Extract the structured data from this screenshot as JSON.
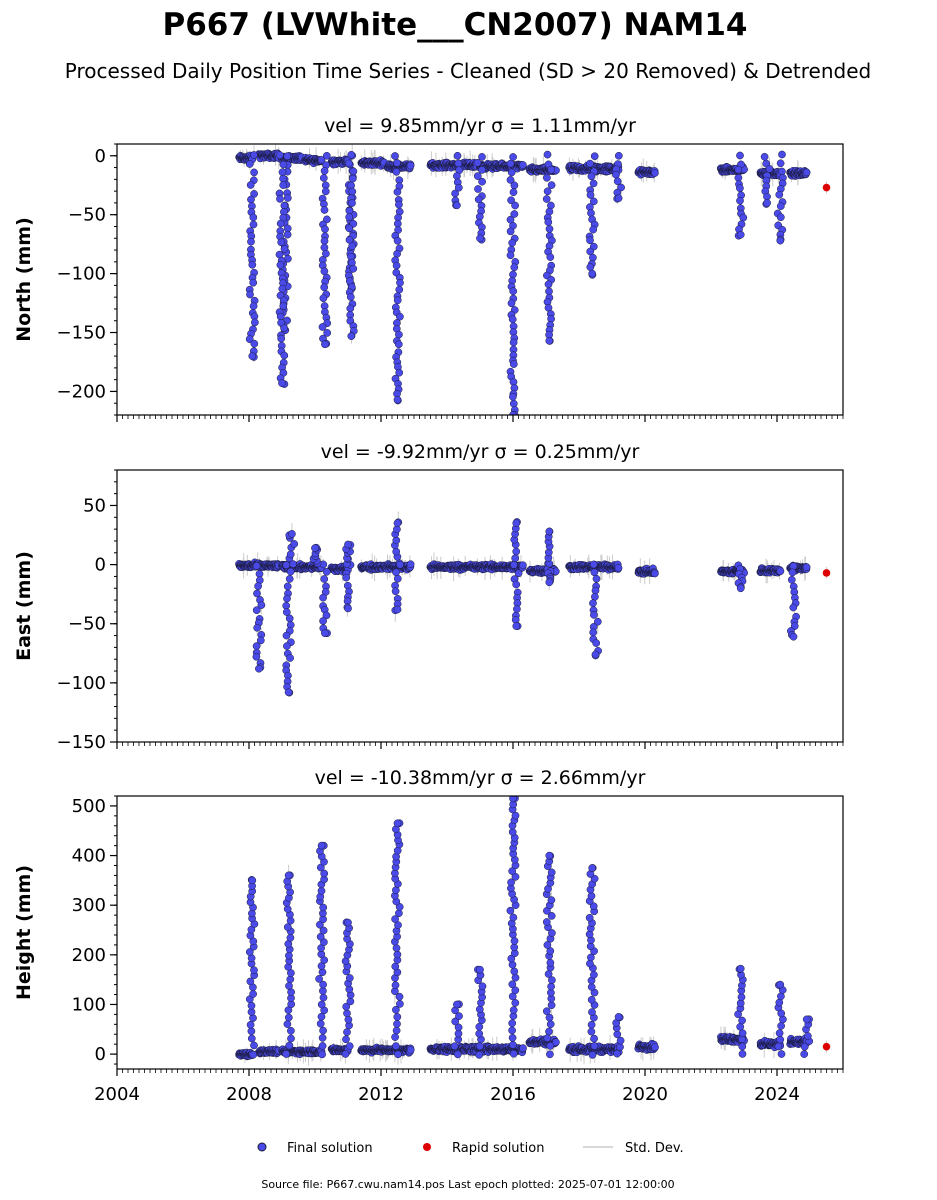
{
  "title": "P667 (LVWhite___CN2007) NAM14",
  "subtitle": "Processed Daily Position Time Series - Cleaned (SD > 20 Removed) & Detrended",
  "footer": "Source file: P667.cwu.nam14.pos  Last epoch plotted: 2025-07-01 12:00:00",
  "colors": {
    "final": "#4a4ae8",
    "rapid": "#dd0000",
    "stddev": "#cccccc",
    "edge": "#1a1a3a"
  },
  "legend": [
    {
      "label": "Final solution",
      "marker": "circle",
      "color": "#4a4ae8"
    },
    {
      "label": "Rapid solution",
      "marker": "circle",
      "color": "#dd0000"
    },
    {
      "label": "Std. Dev.",
      "marker": "line",
      "color": "#cccccc"
    }
  ],
  "chart_data": [
    {
      "type": "scatter",
      "title": "vel = 9.85mm/yr   σ = 1.11mm/yr",
      "ylabel": "North (mm)",
      "xlim": [
        2004.0,
        2026.0
      ],
      "ylim": [
        -220,
        10
      ],
      "yticks": [
        0,
        -50,
        -100,
        -150,
        -200
      ],
      "xticks": [
        2004,
        2008,
        2012,
        2016,
        2020,
        2024
      ],
      "clusters": [
        {
          "x": [
            2007.7,
            2008.1
          ],
          "base": -2,
          "spread": 3
        },
        {
          "x": [
            2008.3,
            2008.9
          ],
          "base": 0,
          "spread": 3
        },
        {
          "x": [
            2009.0,
            2009.6
          ],
          "base": -2,
          "spread": 3
        },
        {
          "x": [
            2009.7,
            2010.2
          ],
          "base": -4,
          "spread": 3
        },
        {
          "x": [
            2010.5,
            2011.0
          ],
          "base": -5,
          "spread": 3
        },
        {
          "x": [
            2011.4,
            2012.1
          ],
          "base": -6,
          "spread": 3
        },
        {
          "x": [
            2012.2,
            2012.9
          ],
          "base": -9,
          "spread": 3
        },
        {
          "x": [
            2013.5,
            2014.9
          ],
          "base": -8,
          "spread": 3
        },
        {
          "x": [
            2015.0,
            2016.3
          ],
          "base": -9,
          "spread": 3
        },
        {
          "x": [
            2016.5,
            2017.3
          ],
          "base": -12,
          "spread": 3
        },
        {
          "x": [
            2017.7,
            2019.2
          ],
          "base": -11,
          "spread": 4
        },
        {
          "x": [
            2019.8,
            2020.3
          ],
          "base": -14,
          "spread": 3
        },
        {
          "x": [
            2022.3,
            2023.0
          ],
          "base": -12,
          "spread": 3
        },
        {
          "x": [
            2023.5,
            2024.1
          ],
          "base": -15,
          "spread": 3
        },
        {
          "x": [
            2024.4,
            2024.9
          ],
          "base": -15,
          "spread": 3
        }
      ],
      "spikes": [
        {
          "x": 2008.1,
          "y": -170
        },
        {
          "x": 2009.1,
          "y": -148
        },
        {
          "x": 2009.0,
          "y": -193
        },
        {
          "x": 2010.3,
          "y": -160
        },
        {
          "x": 2011.1,
          "y": -113
        },
        {
          "x": 2011.1,
          "y": -153
        },
        {
          "x": 2012.5,
          "y": -207
        },
        {
          "x": 2014.3,
          "y": -42
        },
        {
          "x": 2015.0,
          "y": -70
        },
        {
          "x": 2016.0,
          "y": -220
        },
        {
          "x": 2017.1,
          "y": -157
        },
        {
          "x": 2018.4,
          "y": -100
        },
        {
          "x": 2019.2,
          "y": -36
        },
        {
          "x": 2022.9,
          "y": -67
        },
        {
          "x": 2023.7,
          "y": -40
        },
        {
          "x": 2024.1,
          "y": -72
        }
      ],
      "rapid": [
        {
          "x": 2025.5,
          "y": -27
        }
      ]
    },
    {
      "type": "scatter",
      "title": "vel = -9.92mm/yr   σ = 0.25mm/yr",
      "ylabel": "East (mm)",
      "xlim": [
        2004.0,
        2026.0
      ],
      "ylim": [
        -150,
        80
      ],
      "yticks": [
        50,
        0,
        -50,
        -100,
        -150
      ],
      "xticks": [
        2004,
        2008,
        2012,
        2016,
        2020,
        2024
      ],
      "clusters": [
        {
          "x": [
            2007.7,
            2008.9
          ],
          "base": -1,
          "spread": 3
        },
        {
          "x": [
            2009.0,
            2010.2
          ],
          "base": -2,
          "spread": 3
        },
        {
          "x": [
            2010.5,
            2011.0
          ],
          "base": -4,
          "spread": 3
        },
        {
          "x": [
            2011.4,
            2012.9
          ],
          "base": -2,
          "spread": 3
        },
        {
          "x": [
            2013.5,
            2016.3
          ],
          "base": -2,
          "spread": 3
        },
        {
          "x": [
            2016.5,
            2017.3
          ],
          "base": -5,
          "spread": 3
        },
        {
          "x": [
            2017.7,
            2019.2
          ],
          "base": -2,
          "spread": 3
        },
        {
          "x": [
            2019.8,
            2020.3
          ],
          "base": -6,
          "spread": 3
        },
        {
          "x": [
            2022.3,
            2023.0
          ],
          "base": -6,
          "spread": 3
        },
        {
          "x": [
            2023.5,
            2024.1
          ],
          "base": -5,
          "spread": 3
        },
        {
          "x": [
            2024.4,
            2024.9
          ],
          "base": -3,
          "spread": 3
        }
      ],
      "spikes": [
        {
          "x": 2008.3,
          "y": -88
        },
        {
          "x": 2009.2,
          "y": -108
        },
        {
          "x": 2009.3,
          "y": 26
        },
        {
          "x": 2010.3,
          "y": -58
        },
        {
          "x": 2010.0,
          "y": 14
        },
        {
          "x": 2011.0,
          "y": -37
        },
        {
          "x": 2011.0,
          "y": 17
        },
        {
          "x": 2012.5,
          "y": -38
        },
        {
          "x": 2012.5,
          "y": 35
        },
        {
          "x": 2016.1,
          "y": -52
        },
        {
          "x": 2016.1,
          "y": 35
        },
        {
          "x": 2017.1,
          "y": -15
        },
        {
          "x": 2017.1,
          "y": 28
        },
        {
          "x": 2018.5,
          "y": -76
        },
        {
          "x": 2022.9,
          "y": -20
        },
        {
          "x": 2024.5,
          "y": -61
        }
      ],
      "rapid": [
        {
          "x": 2025.5,
          "y": -7
        }
      ]
    },
    {
      "type": "scatter",
      "title": "vel = -10.38mm/yr   σ = 2.66mm/yr",
      "ylabel": "Height (mm)",
      "xlim": [
        2004.0,
        2026.0
      ],
      "ylim": [
        -30,
        520
      ],
      "yticks": [
        500,
        400,
        300,
        200,
        100,
        0
      ],
      "xticks": [
        2004,
        2008,
        2012,
        2016,
        2020,
        2024
      ],
      "clusters": [
        {
          "x": [
            2007.7,
            2008.1
          ],
          "base": 0,
          "spread": 6
        },
        {
          "x": [
            2008.3,
            2008.9
          ],
          "base": 5,
          "spread": 6
        },
        {
          "x": [
            2009.0,
            2010.2
          ],
          "base": 5,
          "spread": 6
        },
        {
          "x": [
            2010.5,
            2011.0
          ],
          "base": 8,
          "spread": 6
        },
        {
          "x": [
            2011.4,
            2012.9
          ],
          "base": 8,
          "spread": 6
        },
        {
          "x": [
            2013.5,
            2016.3
          ],
          "base": 10,
          "spread": 8
        },
        {
          "x": [
            2016.5,
            2017.3
          ],
          "base": 25,
          "spread": 8
        },
        {
          "x": [
            2017.7,
            2019.2
          ],
          "base": 10,
          "spread": 8
        },
        {
          "x": [
            2019.8,
            2020.3
          ],
          "base": 15,
          "spread": 8
        },
        {
          "x": [
            2022.3,
            2023.0
          ],
          "base": 30,
          "spread": 8
        },
        {
          "x": [
            2023.5,
            2024.1
          ],
          "base": 20,
          "spread": 8
        },
        {
          "x": [
            2024.4,
            2024.9
          ],
          "base": 25,
          "spread": 8
        }
      ],
      "spikes": [
        {
          "x": 2008.1,
          "y": 350
        },
        {
          "x": 2009.2,
          "y": 360
        },
        {
          "x": 2010.2,
          "y": 420
        },
        {
          "x": 2011.0,
          "y": 265
        },
        {
          "x": 2012.5,
          "y": 465
        },
        {
          "x": 2014.3,
          "y": 100
        },
        {
          "x": 2015.0,
          "y": 170
        },
        {
          "x": 2016.0,
          "y": 515
        },
        {
          "x": 2017.1,
          "y": 400
        },
        {
          "x": 2018.4,
          "y": 375
        },
        {
          "x": 2019.2,
          "y": 75
        },
        {
          "x": 2022.9,
          "y": 172
        },
        {
          "x": 2024.1,
          "y": 140
        },
        {
          "x": 2024.9,
          "y": 70
        }
      ],
      "rapid": [
        {
          "x": 2025.5,
          "y": 15
        }
      ]
    }
  ]
}
